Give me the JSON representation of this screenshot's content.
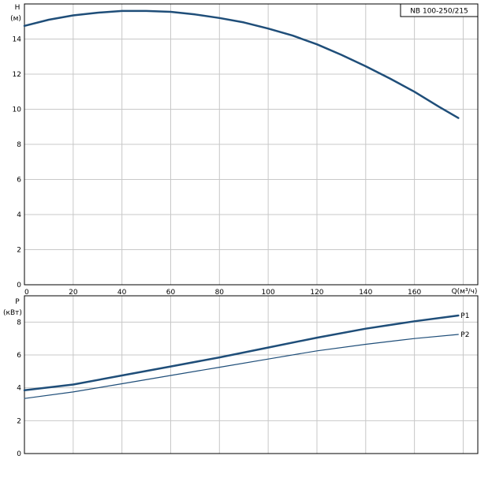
{
  "chart_data": [
    {
      "type": "line",
      "title": "NB 100-250/215",
      "ylabel": "H",
      "yunit": "(м)",
      "xlabel": "Q(м³/ч)",
      "xlim": [
        0,
        186
      ],
      "ylim": [
        0,
        16
      ],
      "xticks": [
        0,
        20,
        40,
        60,
        80,
        100,
        120,
        140,
        160
      ],
      "yticks": [
        0,
        2,
        4,
        6,
        8,
        10,
        12,
        14
      ],
      "grid": true,
      "series": [
        {
          "name": "",
          "color": "#1f4e79",
          "x": [
            0,
            10,
            20,
            30,
            40,
            50,
            60,
            70,
            80,
            90,
            100,
            110,
            120,
            130,
            140,
            150,
            160,
            170,
            178
          ],
          "y": [
            14.75,
            15.1,
            15.35,
            15.5,
            15.6,
            15.6,
            15.55,
            15.4,
            15.2,
            14.95,
            14.6,
            14.2,
            13.7,
            13.1,
            12.45,
            11.75,
            11.0,
            10.15,
            9.5
          ]
        }
      ]
    },
    {
      "type": "line",
      "ylabel": "P",
      "yunit": "(кВт)",
      "xlim": [
        0,
        186
      ],
      "ylim": [
        0,
        9.6
      ],
      "yticks": [
        0,
        2,
        4,
        6,
        8
      ],
      "grid": true,
      "series": [
        {
          "name": "P1",
          "color": "#1f4e79",
          "x": [
            0,
            20,
            40,
            60,
            80,
            100,
            120,
            140,
            160,
            178
          ],
          "y": [
            3.85,
            4.2,
            4.75,
            5.3,
            5.85,
            6.45,
            7.05,
            7.6,
            8.05,
            8.4
          ]
        },
        {
          "name": "P2",
          "color": "#1f4e79",
          "x": [
            0,
            20,
            40,
            60,
            80,
            100,
            120,
            140,
            160,
            178
          ],
          "y": [
            3.35,
            3.75,
            4.25,
            4.75,
            5.25,
            5.75,
            6.25,
            6.65,
            7.0,
            7.25
          ]
        }
      ]
    }
  ]
}
